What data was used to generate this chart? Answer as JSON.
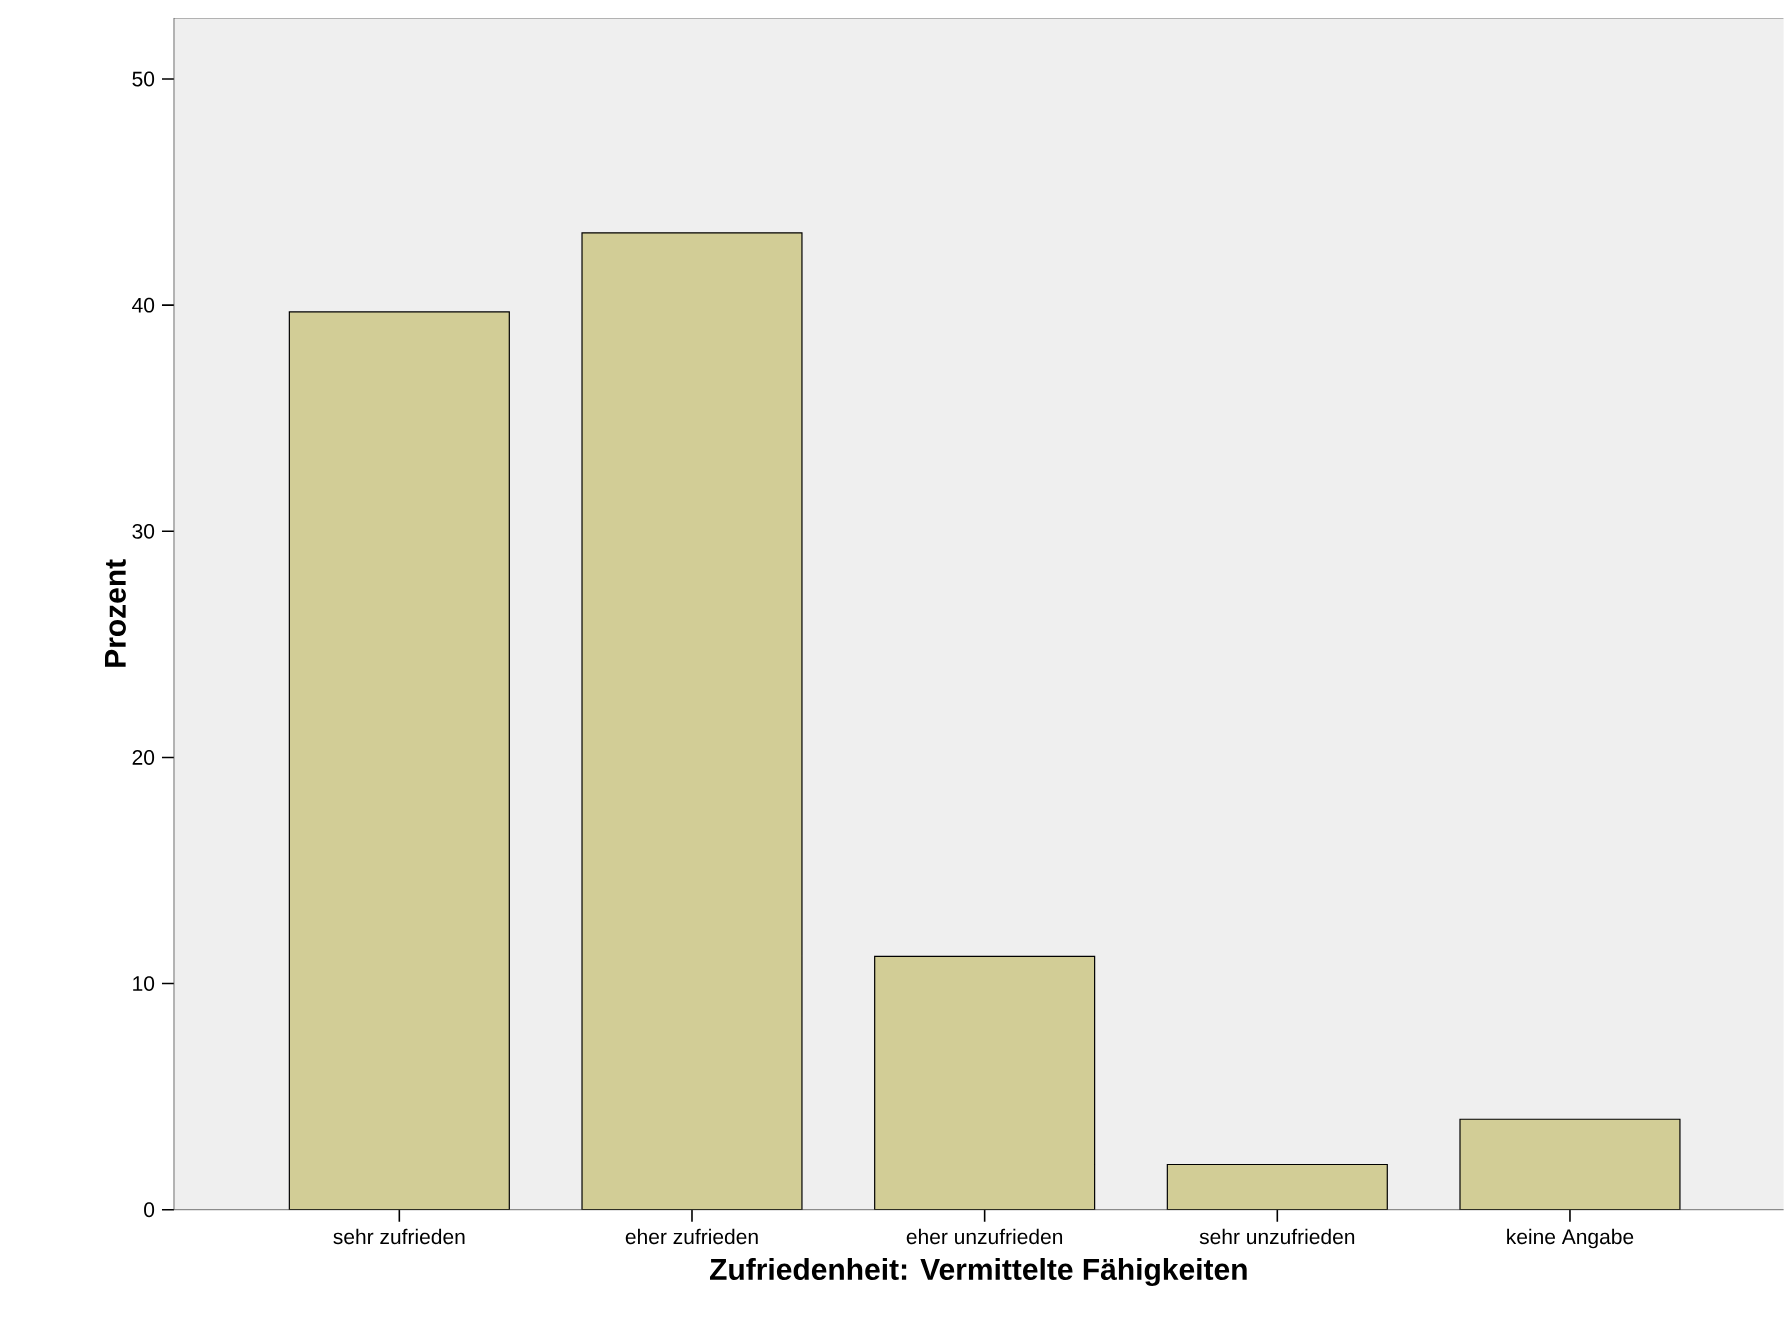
{
  "chart_data": {
    "type": "bar",
    "xlabel": "Zufriedenheit: Vermittelte Fähigkeiten",
    "ylabel": "Prozent",
    "categories": [
      "sehr zufrieden",
      "eher zufrieden",
      "eher unzufrieden",
      "sehr unzufrieden",
      "keine Angabe"
    ],
    "values": [
      39.7,
      43.2,
      11.2,
      2.0,
      4.0
    ],
    "color": "#d2cd96",
    "ylim": [
      0,
      52.7
    ],
    "yticks": [
      0,
      10,
      20,
      30,
      40,
      50
    ],
    "grid": false
  }
}
